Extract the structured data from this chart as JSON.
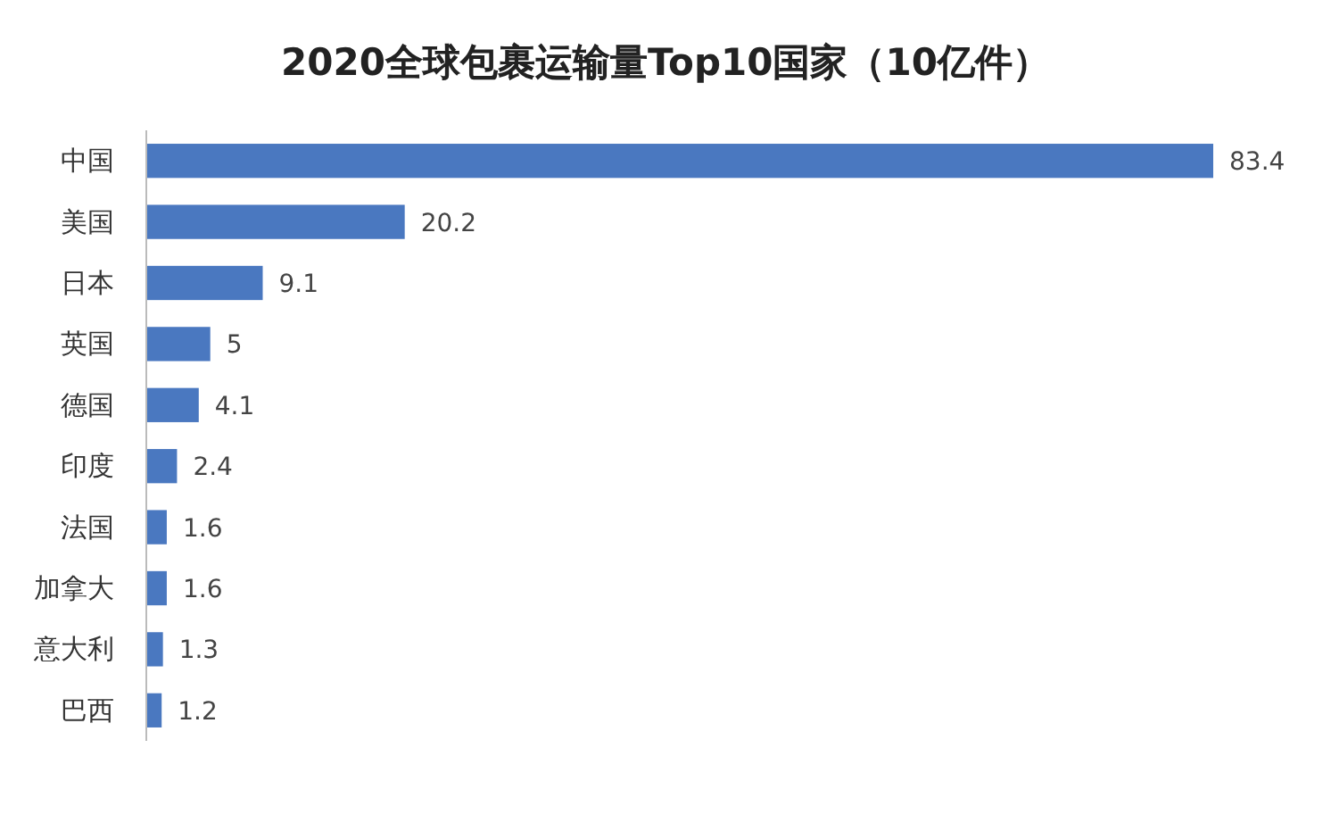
{
  "chart_data": {
    "type": "bar",
    "orientation": "horizontal",
    "title": "2020全球包裹运输量Top10国家（10亿件）",
    "categories": [
      "中国",
      "美国",
      "日本",
      "英国",
      "德国",
      "印度",
      "法国",
      "加拿大",
      "意大利",
      "巴西"
    ],
    "values": [
      83.4,
      20.2,
      9.1,
      5,
      4.1,
      2.4,
      1.6,
      1.6,
      1.3,
      1.2
    ],
    "color": "#4a78c0",
    "data_labels": true
  }
}
